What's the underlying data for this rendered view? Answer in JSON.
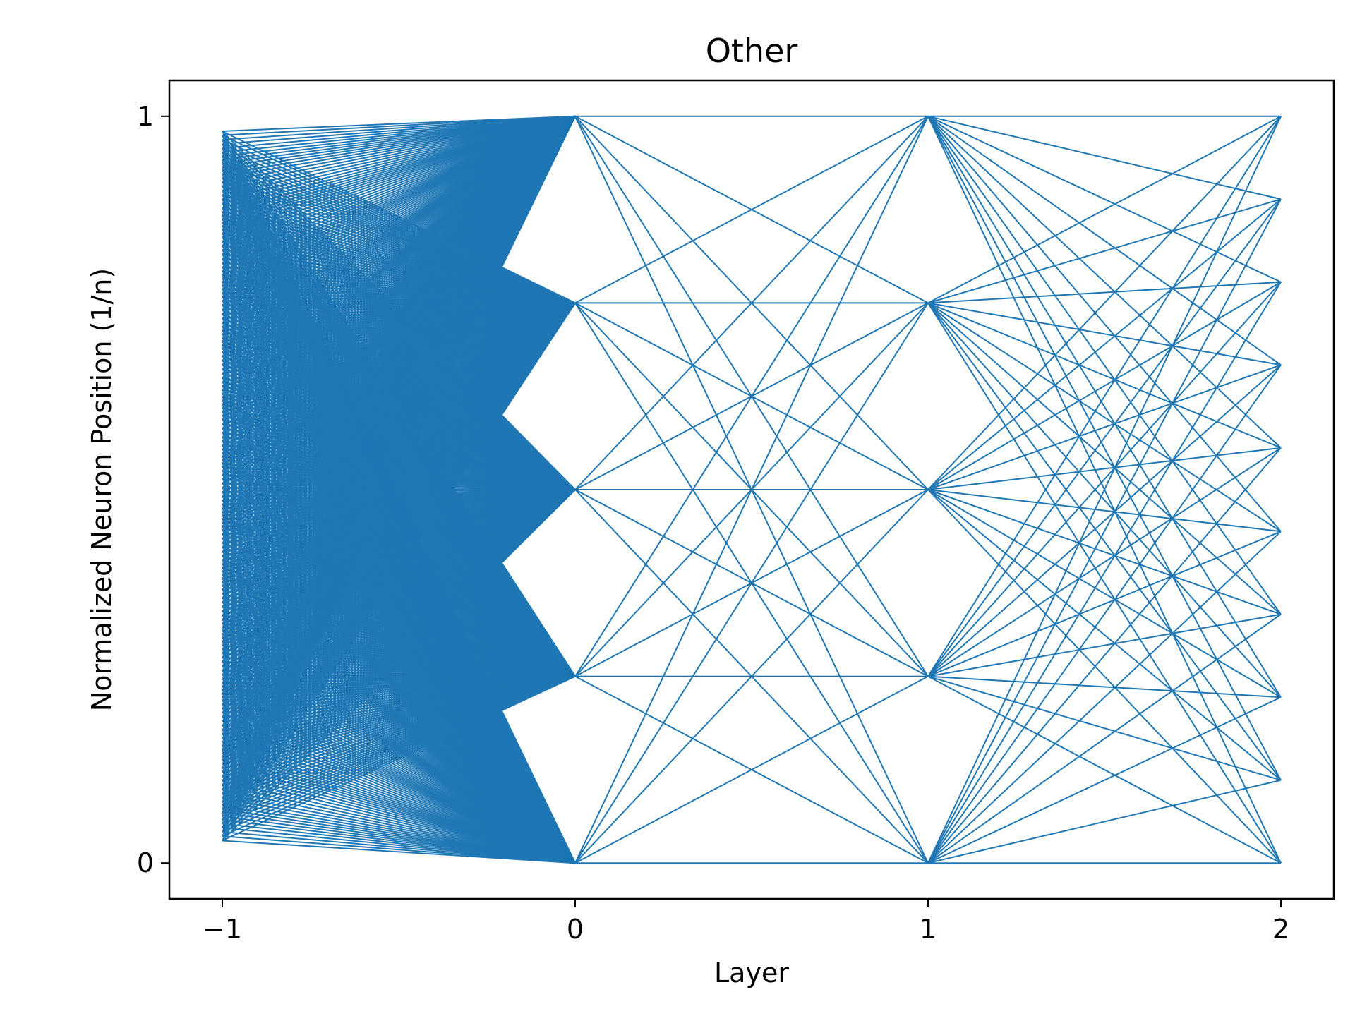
{
  "chart_data": {
    "type": "line",
    "title": "Other",
    "xlabel": "Layer",
    "ylabel": "Normalized Neuron Position (1/n)",
    "xlim": [
      -1.15,
      2.15
    ],
    "ylim": [
      -0.048,
      1.048
    ],
    "x_ticks": [
      {
        "value": -1,
        "label": "−1"
      },
      {
        "value": 0,
        "label": "0"
      },
      {
        "value": 1,
        "label": "1"
      },
      {
        "value": 2,
        "label": "2"
      }
    ],
    "y_ticks": [
      {
        "value": 0,
        "label": "0"
      },
      {
        "value": 1,
        "label": "1"
      }
    ],
    "grid": false,
    "legend": "none",
    "series_color": "#1f77b4",
    "layers": [
      {
        "layer": -1,
        "neurons": 180,
        "y_range": [
          0.03,
          0.98
        ]
      },
      {
        "layer": 0,
        "positions": [
          0,
          0.25,
          0.5,
          0.75,
          1
        ]
      },
      {
        "layer": 1,
        "positions": [
          0,
          0.25,
          0.5,
          0.75,
          1
        ]
      },
      {
        "layer": 2,
        "positions": [
          0,
          0.111,
          0.222,
          0.333,
          0.444,
          0.556,
          0.667,
          0.778,
          0.889,
          1
        ]
      }
    ],
    "connectivity": "fully connected between consecutive layers"
  }
}
